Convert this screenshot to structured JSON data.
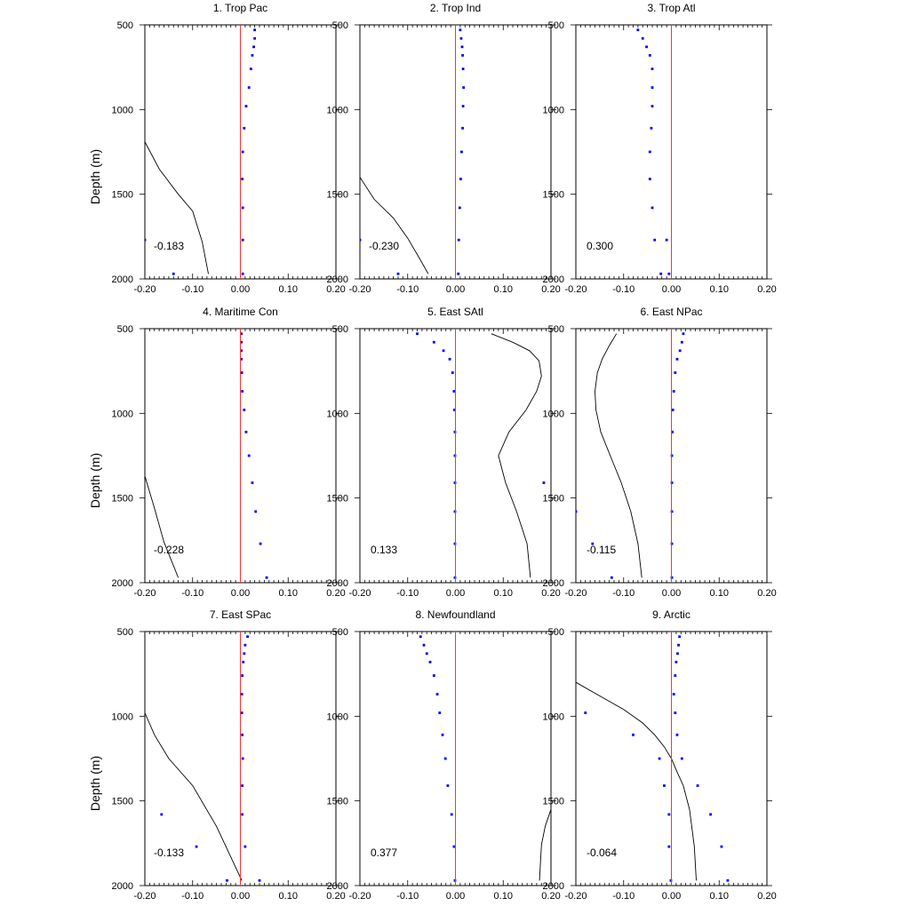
{
  "figure": {
    "ylabel": "Depth (m)",
    "xticks": [
      "-0.20",
      "-0.10",
      "0.00",
      "0.10",
      "0.20"
    ],
    "yticks": [
      "500",
      "1000",
      "1500",
      "2000"
    ]
  },
  "colors": {
    "dots": "#0000ff",
    "zero_line": "#ff3030",
    "curve": "#000000",
    "axes": "#000000"
  },
  "chart_data": [
    {
      "type": "scatter",
      "title": "1. Trop Pac",
      "xlabel": "",
      "ylabel": "Depth (m)",
      "xlim": [
        -0.2,
        0.2
      ],
      "ylim": [
        2000,
        500
      ],
      "yaxis_inverted": true,
      "stat": "-0.183",
      "series": [
        {
          "kind": "dots",
          "x": [
            0.03,
            0.03,
            0.028,
            0.025,
            0.022,
            0.018,
            0.012,
            0.008,
            0.005,
            0.004,
            0.005,
            0.005,
            0.005,
            -0.2,
            -0.14
          ],
          "y": [
            530,
            580,
            630,
            680,
            760,
            870,
            980,
            1110,
            1250,
            1410,
            1580,
            1770,
            1970,
            1770,
            1970
          ]
        },
        {
          "kind": "line",
          "x": [
            -0.2,
            -0.17,
            -0.13,
            -0.1,
            -0.08,
            -0.067
          ],
          "y": [
            1190,
            1350,
            1500,
            1600,
            1780,
            1970
          ]
        },
        {
          "kind": "zero_line"
        }
      ]
    },
    {
      "type": "scatter",
      "title": "2. Trop Ind",
      "xlabel": "",
      "ylabel": "",
      "xlim": [
        -0.2,
        0.2
      ],
      "ylim": [
        2000,
        500
      ],
      "yaxis_inverted": true,
      "stat": "-0.230",
      "series": [
        {
          "kind": "dots",
          "x": [
            0.01,
            0.012,
            0.014,
            0.015,
            0.016,
            0.017,
            0.016,
            0.015,
            0.013,
            0.011,
            0.009,
            0.007,
            0.006,
            -0.2,
            -0.12
          ],
          "y": [
            530,
            580,
            630,
            680,
            760,
            870,
            980,
            1110,
            1250,
            1410,
            1580,
            1770,
            1970,
            1770,
            1970
          ]
        },
        {
          "kind": "line",
          "x": [
            -0.2,
            -0.17,
            -0.13,
            -0.1,
            -0.075,
            -0.057
          ],
          "y": [
            1400,
            1530,
            1640,
            1760,
            1880,
            1970
          ]
        },
        {
          "kind": "zero_line"
        }
      ]
    },
    {
      "type": "scatter",
      "title": "3. Trop Atl",
      "xlabel": "",
      "ylabel": "",
      "xlim": [
        -0.2,
        0.2
      ],
      "ylim": [
        2000,
        500
      ],
      "yaxis_inverted": true,
      "stat": "0.300",
      "series": [
        {
          "kind": "dots",
          "x": [
            -0.07,
            -0.06,
            -0.052,
            -0.045,
            -0.04,
            -0.04,
            -0.04,
            -0.042,
            -0.045,
            -0.045,
            -0.04,
            -0.035,
            -0.022,
            -0.01,
            -0.005
          ],
          "y": [
            530,
            580,
            630,
            680,
            760,
            870,
            980,
            1110,
            1250,
            1410,
            1580,
            1770,
            1970,
            1770,
            1970
          ]
        },
        {
          "kind": "zero_line"
        }
      ]
    },
    {
      "type": "scatter",
      "title": "4. Maritime Con",
      "xlabel": "",
      "ylabel": "Depth (m)",
      "xlim": [
        -0.2,
        0.2
      ],
      "ylim": [
        2000,
        500
      ],
      "yaxis_inverted": true,
      "stat": "-0.228",
      "series": [
        {
          "kind": "dots",
          "x": [
            0.002,
            0.002,
            0.002,
            0.002,
            0.003,
            0.004,
            0.008,
            0.012,
            0.018,
            0.025,
            0.032,
            0.042,
            0.055
          ],
          "y": [
            530,
            580,
            630,
            680,
            760,
            870,
            980,
            1110,
            1250,
            1410,
            1580,
            1770,
            1970
          ]
        },
        {
          "kind": "line",
          "x": [
            -0.2,
            -0.18,
            -0.16,
            -0.13
          ],
          "y": [
            1370,
            1560,
            1760,
            1970
          ]
        },
        {
          "kind": "zero_line"
        }
      ]
    },
    {
      "type": "scatter",
      "title": "5. East SAtl",
      "xlabel": "",
      "ylabel": "",
      "xlim": [
        -0.2,
        0.2
      ],
      "ylim": [
        2000,
        500
      ],
      "yaxis_inverted": true,
      "stat": "0.133",
      "series": [
        {
          "kind": "dots",
          "x": [
            -0.08,
            -0.045,
            -0.025,
            -0.012,
            -0.006,
            -0.003,
            -0.002,
            -0.001,
            -0.001,
            -0.001,
            -0.001,
            -0.001,
            -0.001,
            0.185
          ],
          "y": [
            530,
            580,
            630,
            680,
            760,
            870,
            980,
            1110,
            1250,
            1410,
            1580,
            1770,
            1970,
            1410
          ]
        },
        {
          "kind": "line",
          "x": [
            0.075,
            0.12,
            0.155,
            0.175,
            0.18,
            0.17,
            0.148,
            0.112,
            0.09,
            0.105,
            0.128,
            0.15,
            0.157
          ],
          "y": [
            530,
            580,
            630,
            690,
            780,
            870,
            980,
            1110,
            1250,
            1410,
            1580,
            1770,
            1970
          ]
        },
        {
          "kind": "zero_line"
        }
      ]
    },
    {
      "type": "scatter",
      "title": "6. East NPac",
      "xlabel": "",
      "ylabel": "",
      "xlim": [
        -0.2,
        0.2
      ],
      "ylim": [
        2000,
        500
      ],
      "yaxis_inverted": true,
      "stat": "-0.115",
      "series": [
        {
          "kind": "dots",
          "x": [
            0.025,
            0.022,
            0.018,
            0.012,
            0.008,
            0.005,
            0.003,
            0.002,
            0.001,
            0.001,
            0.001,
            0.001,
            0.001,
            -0.2,
            -0.165,
            -0.125
          ],
          "y": [
            530,
            580,
            630,
            680,
            760,
            870,
            980,
            1110,
            1250,
            1410,
            1580,
            1770,
            1970,
            1580,
            1770,
            1970
          ]
        },
        {
          "kind": "line",
          "x": [
            -0.115,
            -0.13,
            -0.145,
            -0.155,
            -0.16,
            -0.158,
            -0.148,
            -0.128,
            -0.105,
            -0.085,
            -0.07,
            -0.062
          ],
          "y": [
            530,
            600,
            680,
            760,
            870,
            980,
            1110,
            1250,
            1410,
            1580,
            1770,
            1970
          ]
        },
        {
          "kind": "zero_line"
        }
      ]
    },
    {
      "type": "scatter",
      "title": "7. East SPac",
      "xlabel": "",
      "ylabel": "Depth (m)",
      "xlim": [
        -0.2,
        0.2
      ],
      "ylim": [
        2000,
        500
      ],
      "yaxis_inverted": true,
      "stat": "-0.133",
      "series": [
        {
          "kind": "dots",
          "x": [
            0.015,
            0.01,
            0.008,
            0.006,
            0.004,
            0.003,
            0.003,
            0.004,
            0.005,
            0.004,
            0.004,
            0.01,
            0.04,
            -0.165,
            -0.092,
            -0.028
          ],
          "y": [
            530,
            580,
            630,
            680,
            760,
            870,
            980,
            1110,
            1250,
            1410,
            1580,
            1770,
            1970,
            1580,
            1770,
            1970
          ]
        },
        {
          "kind": "line",
          "x": [
            -0.2,
            -0.18,
            -0.15,
            -0.1,
            -0.05,
            0.003
          ],
          "y": [
            980,
            1110,
            1250,
            1410,
            1650,
            1970
          ]
        },
        {
          "kind": "zero_line"
        }
      ]
    },
    {
      "type": "scatter",
      "title": "8. Newfoundland",
      "xlabel": "",
      "ylabel": "",
      "xlim": [
        -0.2,
        0.2
      ],
      "ylim": [
        2000,
        500
      ],
      "yaxis_inverted": true,
      "stat": "0.377",
      "series": [
        {
          "kind": "dots",
          "x": [
            -0.073,
            -0.066,
            -0.06,
            -0.053,
            -0.045,
            -0.038,
            -0.033,
            -0.027,
            -0.021,
            -0.016,
            -0.008,
            -0.003,
            -0.001
          ],
          "y": [
            530,
            580,
            630,
            680,
            760,
            870,
            980,
            1110,
            1250,
            1410,
            1580,
            1770,
            1970
          ]
        },
        {
          "kind": "line",
          "x": [
            0.2,
            0.188,
            0.18,
            0.178,
            0.176
          ],
          "y": [
            1550,
            1650,
            1760,
            1860,
            1970
          ]
        },
        {
          "kind": "zero_line"
        }
      ]
    },
    {
      "type": "scatter",
      "title": "9. Arctic",
      "xlabel": "",
      "ylabel": "",
      "xlim": [
        -0.2,
        0.2
      ],
      "ylim": [
        2000,
        500
      ],
      "yaxis_inverted": true,
      "stat": "-0.064",
      "series": [
        {
          "kind": "dots",
          "x": [
            0.017,
            0.015,
            0.013,
            0.01,
            0.008,
            0.005,
            0.008,
            0.012,
            0.022,
            0.055,
            0.082,
            0.105,
            0.118,
            -0.18,
            -0.08,
            -0.025,
            -0.015,
            -0.005,
            -0.005,
            -0.001
          ],
          "y": [
            530,
            580,
            630,
            680,
            760,
            870,
            980,
            1110,
            1250,
            1410,
            1580,
            1770,
            1970,
            980,
            1110,
            1250,
            1410,
            1580,
            1770,
            1970
          ]
        },
        {
          "kind": "line",
          "x": [
            -0.2,
            -0.15,
            -0.1,
            -0.06,
            -0.035,
            -0.015,
            0.0,
            0.012,
            0.025,
            0.038,
            0.048,
            0.052
          ],
          "y": [
            800,
            880,
            960,
            1040,
            1110,
            1180,
            1250,
            1330,
            1410,
            1550,
            1770,
            1970
          ]
        },
        {
          "kind": "zero_line"
        }
      ]
    }
  ]
}
